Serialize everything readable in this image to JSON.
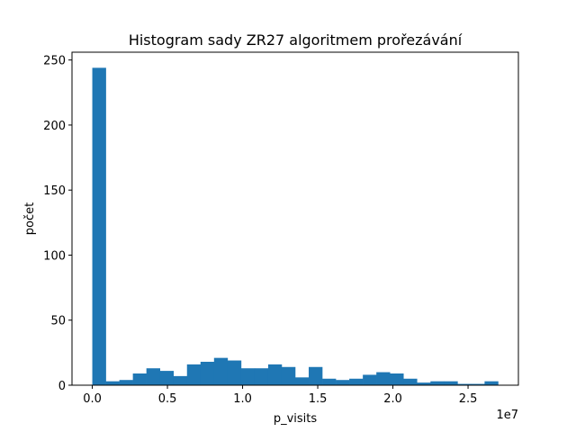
{
  "chart_data": {
    "type": "bar",
    "title": "Histogram sady ZR27 algoritmem prořezávání",
    "xlabel": "p_visits",
    "ylabel": "počet",
    "x_offset_label": "1e7",
    "bin_edges": [
      0,
      0.09,
      0.18,
      0.27,
      0.36,
      0.45,
      0.54,
      0.63,
      0.72,
      0.81,
      0.9,
      0.99,
      1.08,
      1.17,
      1.26,
      1.35,
      1.44,
      1.53,
      1.62,
      1.71,
      1.8,
      1.89,
      1.98,
      2.07,
      2.16,
      2.25,
      2.34,
      2.43,
      2.52,
      2.61,
      2.7
    ],
    "values": [
      244,
      3,
      4,
      9,
      13,
      11,
      7,
      16,
      18,
      21,
      19,
      13,
      13,
      16,
      14,
      6,
      14,
      5,
      4,
      5,
      8,
      10,
      9,
      5,
      2,
      3,
      3,
      1,
      1,
      3
    ],
    "xlim": [
      -0.135,
      2.835
    ],
    "ylim": [
      0,
      256
    ],
    "xticks": [
      0,
      0.5,
      1.0,
      1.5,
      2.0,
      2.5
    ],
    "xtick_labels": [
      "0.0",
      "0.5",
      "1.0",
      "1.5",
      "2.0",
      "2.5"
    ],
    "yticks": [
      0,
      50,
      100,
      150,
      200,
      250
    ],
    "ytick_labels": [
      "0",
      "50",
      "100",
      "150",
      "200",
      "250"
    ],
    "bar_color": "#1f77b4",
    "grid": false,
    "legend": "none"
  }
}
